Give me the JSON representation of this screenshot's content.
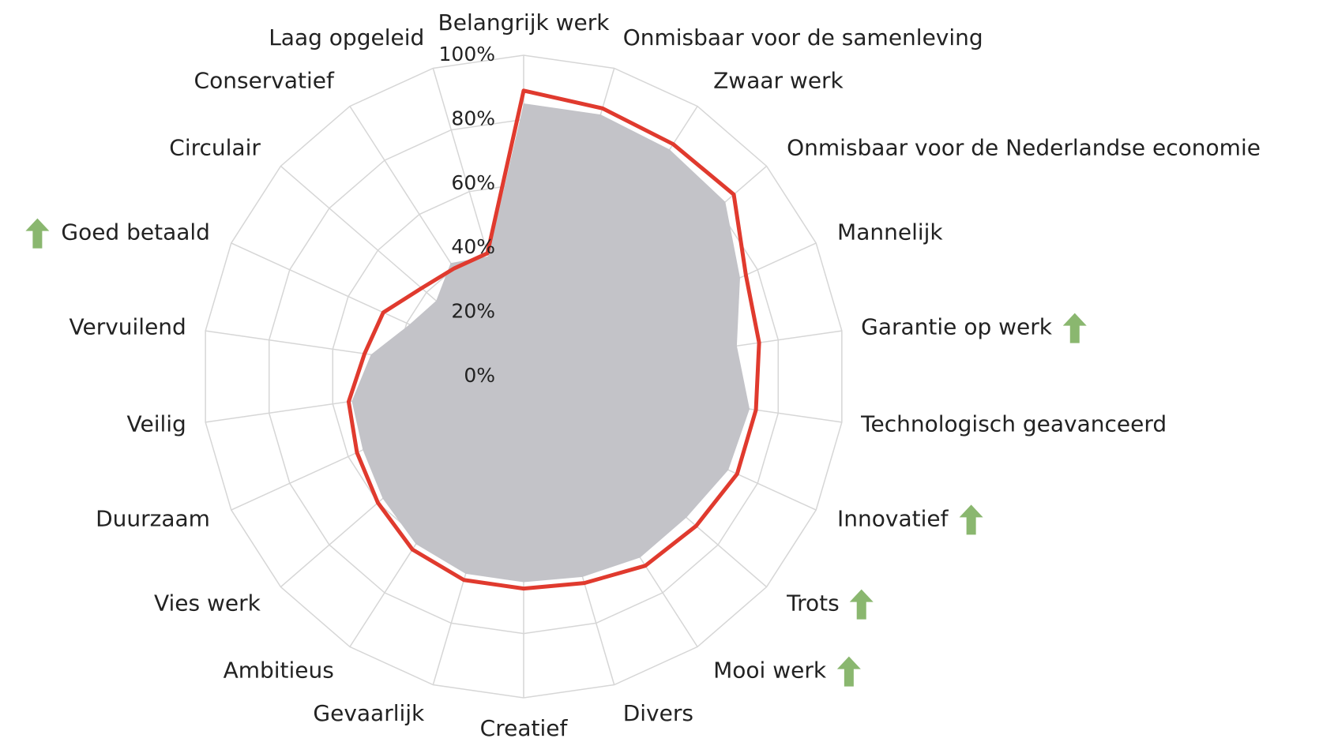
{
  "chart_data": {
    "type": "radar",
    "categories": [
      "Belangrijk werk",
      "Onmisbaar voor de samenleving",
      "Zwaar werk",
      "Onmisbaar voor de Nederlandse economie",
      "Mannelijk",
      "Garantie op werk",
      "Technologisch geavanceerd",
      "Innovatief",
      "Trots",
      "Mooi werk",
      "Divers",
      "Creatief",
      "Gevaarlijk",
      "Ambitieus",
      "Vies werk",
      "Duurzaam",
      "Veilig",
      "Vervuilend",
      "Goed betaald",
      "Circulair",
      "Conservatief",
      "Laag opgeleid"
    ],
    "series": [
      {
        "color": "#c3c3c8",
        "fill": true,
        "values": [
          85,
          85,
          84,
          83,
          74,
          67,
          71,
          70,
          67,
          67,
          65,
          64,
          64,
          62,
          58,
          55,
          54,
          48,
          39,
          36,
          42,
          39
        ]
      },
      {
        "color": "#e03a2e",
        "fill": false,
        "values": [
          89,
          87,
          86,
          86.5,
          76,
          74,
          73,
          73,
          71,
          70,
          67,
          66,
          66,
          64,
          60,
          57,
          55,
          50,
          48,
          42,
          40,
          40
        ]
      }
    ],
    "ylim": [
      0,
      100
    ],
    "yticks": [
      {
        "value": 0,
        "label": "0%"
      },
      {
        "value": 20,
        "label": "20%"
      },
      {
        "value": 40,
        "label": "40%"
      },
      {
        "value": 60,
        "label": "60%"
      },
      {
        "value": 80,
        "label": "80%"
      },
      {
        "value": 100,
        "label": "100%"
      }
    ],
    "grid": true,
    "highlighted": [
      5,
      7,
      8,
      9,
      18
    ],
    "highlight_color": "#8ab76f"
  }
}
